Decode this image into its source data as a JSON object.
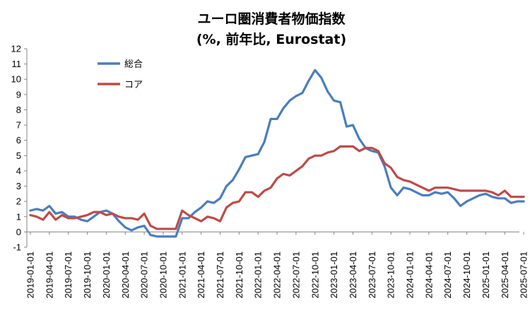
{
  "chart_data": {
    "type": "line",
    "title": "ユーロ圏消費者物価指数",
    "subtitle": "(%, 前年比, Eurostat)",
    "ylim": [
      -1,
      12
    ],
    "yticks": [
      -1,
      0,
      1,
      2,
      3,
      4,
      5,
      6,
      7,
      8,
      9,
      10,
      11,
      12
    ],
    "grid": false,
    "legend_position": "top-left",
    "start_month": "2019-01",
    "x_tick_labels": [
      "2019-01-01",
      "2019-04-01",
      "2019-07-01",
      "2019-10-01",
      "2020-01-01",
      "2020-04-01",
      "2020-07-01",
      "2020-10-01",
      "2021-01-01",
      "2021-04-01",
      "2021-07-01",
      "2021-10-01",
      "2022-01-01",
      "2022-04-01",
      "2022-07-01",
      "2022-10-01",
      "2023-01-01",
      "2023-04-01",
      "2023-07-01",
      "2023-10-01",
      "2024-01-01",
      "2024-04-01",
      "2024-07-01",
      "2024-10-01",
      "2025-01-01",
      "2025-04-01",
      "2025-07-01"
    ],
    "series": [
      {
        "name": "総合",
        "color": "#4a7ebb",
        "values": [
          1.4,
          1.5,
          1.4,
          1.7,
          1.2,
          1.3,
          1.0,
          1.0,
          0.8,
          0.7,
          1.0,
          1.3,
          1.4,
          1.2,
          0.7,
          0.3,
          0.1,
          0.3,
          0.4,
          -0.2,
          -0.3,
          -0.3,
          -0.3,
          -0.3,
          0.9,
          0.9,
          1.3,
          1.6,
          2.0,
          1.9,
          2.2,
          3.0,
          3.4,
          4.1,
          4.9,
          5.0,
          5.1,
          5.9,
          7.4,
          7.4,
          8.1,
          8.6,
          8.9,
          9.1,
          9.9,
          10.6,
          10.1,
          9.2,
          8.6,
          8.5,
          6.9,
          7.0,
          6.1,
          5.5,
          5.3,
          5.2,
          4.3,
          2.9,
          2.4,
          2.9,
          2.8,
          2.6,
          2.4,
          2.4,
          2.6,
          2.5,
          2.6,
          2.2,
          1.7,
          2.0,
          2.2,
          2.4,
          2.5,
          2.3,
          2.2,
          2.2,
          1.9,
          2.0,
          2.0
        ]
      },
      {
        "name": "コア",
        "color": "#be4b48",
        "values": [
          1.1,
          1.0,
          0.8,
          1.3,
          0.8,
          1.1,
          0.9,
          0.9,
          1.0,
          1.1,
          1.3,
          1.3,
          1.1,
          1.2,
          1.0,
          0.9,
          0.9,
          0.8,
          1.2,
          0.4,
          0.2,
          0.2,
          0.2,
          0.2,
          1.4,
          1.1,
          0.9,
          0.7,
          1.0,
          0.9,
          0.7,
          1.6,
          1.9,
          2.0,
          2.6,
          2.6,
          2.3,
          2.7,
          2.9,
          3.5,
          3.8,
          3.7,
          4.0,
          4.3,
          4.8,
          5.0,
          5.0,
          5.2,
          5.3,
          5.6,
          5.6,
          5.6,
          5.3,
          5.5,
          5.5,
          5.3,
          4.5,
          4.2,
          3.6,
          3.4,
          3.3,
          3.1,
          2.9,
          2.7,
          2.9,
          2.9,
          2.9,
          2.8,
          2.7,
          2.7,
          2.7,
          2.7,
          2.7,
          2.6,
          2.4,
          2.7,
          2.3,
          2.3,
          2.3
        ]
      }
    ]
  }
}
